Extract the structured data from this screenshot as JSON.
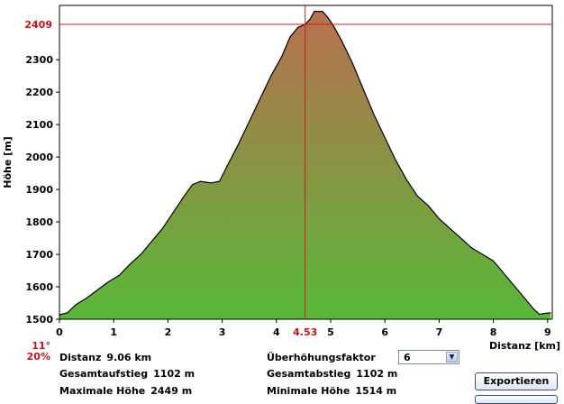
{
  "chart_data": {
    "type": "area",
    "xlabel": "Distanz [km]",
    "ylabel": "Höhe [m]",
    "xlim": [
      0,
      9.06
    ],
    "ylim": [
      1500,
      2470
    ],
    "xticks": [
      0,
      1,
      2,
      3,
      4,
      5,
      6,
      7,
      8,
      9
    ],
    "yticks": [
      1500,
      1600,
      1700,
      1800,
      1900,
      2000,
      2100,
      2200,
      2300
    ],
    "x": [
      0,
      0.15,
      0.3,
      0.5,
      0.7,
      0.9,
      1.1,
      1.3,
      1.5,
      1.7,
      1.9,
      2.1,
      2.3,
      2.45,
      2.6,
      2.8,
      2.95,
      3.1,
      3.3,
      3.5,
      3.7,
      3.9,
      4.1,
      4.25,
      4.4,
      4.53,
      4.62,
      4.7,
      4.85,
      4.95,
      5.05,
      5.2,
      5.4,
      5.6,
      5.8,
      6.0,
      6.2,
      6.4,
      6.6,
      6.8,
      7.0,
      7.2,
      7.4,
      7.6,
      7.8,
      8.0,
      8.2,
      8.4,
      8.6,
      8.75,
      8.85,
      8.95,
      9.06
    ],
    "y": [
      1514,
      1520,
      1545,
      1565,
      1590,
      1615,
      1635,
      1670,
      1700,
      1740,
      1780,
      1830,
      1880,
      1915,
      1925,
      1920,
      1925,
      1975,
      2040,
      2110,
      2180,
      2250,
      2310,
      2370,
      2400,
      2409,
      2425,
      2449,
      2449,
      2430,
      2405,
      2360,
      2290,
      2210,
      2130,
      2060,
      1990,
      1930,
      1880,
      1850,
      1810,
      1780,
      1750,
      1720,
      1700,
      1680,
      1640,
      1600,
      1560,
      1530,
      1515,
      1518,
      1520
    ],
    "cursor": {
      "x_label": "4.53",
      "y_label": "2409"
    },
    "colors": {
      "top": "#b87050",
      "bottom": "#58b838",
      "cursor": "#cc2020",
      "cursor_label": "#d01010"
    },
    "grid": false
  },
  "info": {
    "slope_angle": "11°",
    "slope_percent": "20%",
    "distanz_label": "Distanz",
    "distanz_value": "9.06 km",
    "aufstieg_label": "Gesamtaufstieg",
    "aufstieg_value": "1102 m",
    "abstieg_label": "Gesamtabstieg",
    "abstieg_value": "1102 m",
    "maxhoehe_label": "Maximale Höhe",
    "maxhoehe_value": "2449 m",
    "minhoehe_label": "Minimale Höhe",
    "minhoehe_value": "1514 m"
  },
  "controls": {
    "factor_label": "Überhöhungsfaktor",
    "factor_value": "6",
    "export_label": "Exportieren"
  }
}
